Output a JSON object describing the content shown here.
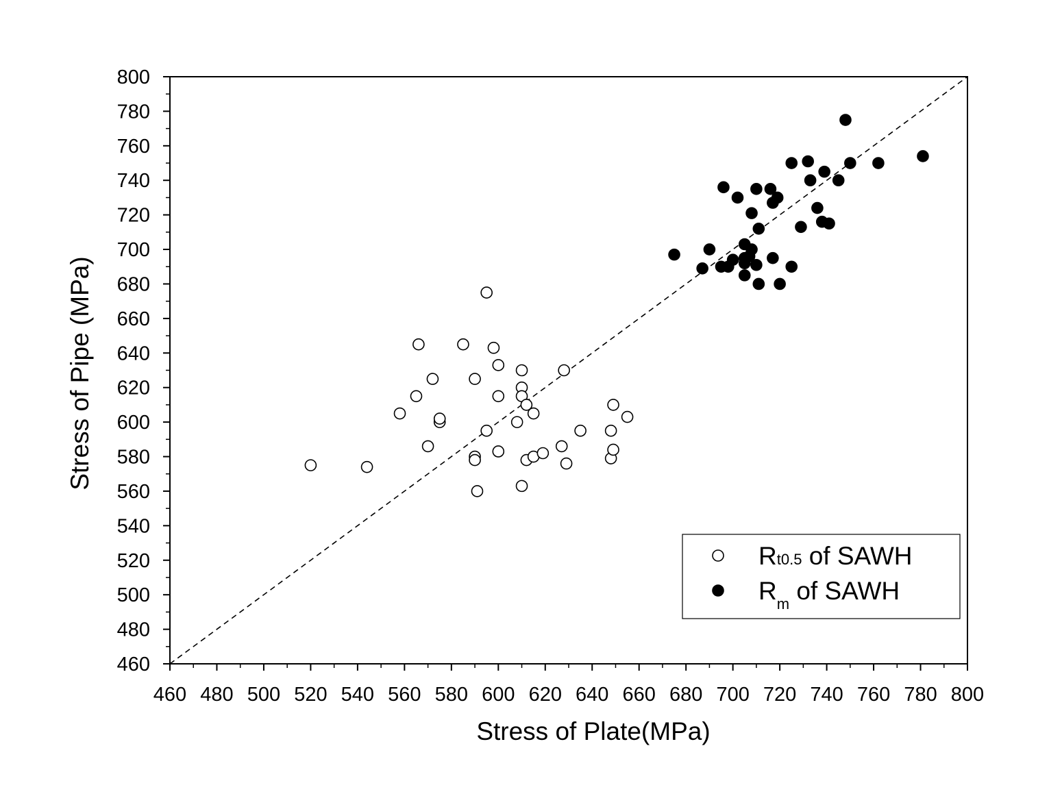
{
  "chart_data": {
    "type": "scatter",
    "title": "",
    "xlabel": "Stress of Plate(MPa)",
    "ylabel": "Stress of Pipe (MPa)",
    "xlim": [
      460,
      800
    ],
    "ylim": [
      460,
      800
    ],
    "xticks": [
      "460",
      "480",
      "500",
      "520",
      "540",
      "560",
      "580",
      "600",
      "620",
      "640",
      "660",
      "680",
      "700",
      "720",
      "740",
      "760",
      "780",
      "800"
    ],
    "yticks": [
      "460",
      "480",
      "500",
      "520",
      "540",
      "560",
      "580",
      "600",
      "620",
      "640",
      "660",
      "680",
      "700",
      "720",
      "740",
      "760",
      "780",
      "800"
    ],
    "grid": false,
    "legend_position": "bottom-right",
    "reference_line": {
      "style": "dashed",
      "from": [
        460,
        460
      ],
      "to": [
        800,
        800
      ]
    },
    "series": [
      {
        "name": "Rt0.5 of SAWH",
        "name_main": "R",
        "name_sub": "t0.5",
        "name_rest": " of SAWH",
        "marker": "open-circle",
        "color": "#000000",
        "points": [
          [
            520,
            575
          ],
          [
            544,
            574
          ],
          [
            558,
            605
          ],
          [
            565,
            615
          ],
          [
            566,
            645
          ],
          [
            570,
            586
          ],
          [
            572,
            625
          ],
          [
            575,
            600
          ],
          [
            575,
            602
          ],
          [
            585,
            645
          ],
          [
            590,
            625
          ],
          [
            590,
            580
          ],
          [
            590,
            578
          ],
          [
            591,
            560
          ],
          [
            595,
            675
          ],
          [
            595,
            595
          ],
          [
            598,
            643
          ],
          [
            600,
            633
          ],
          [
            600,
            615
          ],
          [
            600,
            583
          ],
          [
            608,
            600
          ],
          [
            610,
            630
          ],
          [
            610,
            620
          ],
          [
            610,
            615
          ],
          [
            610,
            563
          ],
          [
            612,
            610
          ],
          [
            612,
            578
          ],
          [
            615,
            605
          ],
          [
            615,
            580
          ],
          [
            619,
            582
          ],
          [
            627,
            586
          ],
          [
            628,
            630
          ],
          [
            629,
            576
          ],
          [
            635,
            595
          ],
          [
            648,
            595
          ],
          [
            648,
            579
          ],
          [
            649,
            610
          ],
          [
            649,
            584
          ],
          [
            655,
            603
          ]
        ]
      },
      {
        "name": "Rm of SAWH",
        "name_main": "R",
        "name_sub": "m",
        "name_rest": " of SAWH",
        "marker": "filled-circle",
        "color": "#000000",
        "points": [
          [
            675,
            697
          ],
          [
            687,
            689
          ],
          [
            690,
            700
          ],
          [
            695,
            690
          ],
          [
            696,
            736
          ],
          [
            698,
            690
          ],
          [
            700,
            694
          ],
          [
            702,
            730
          ],
          [
            705,
            703
          ],
          [
            705,
            695
          ],
          [
            705,
            692
          ],
          [
            705,
            685
          ],
          [
            707,
            696
          ],
          [
            708,
            700
          ],
          [
            708,
            721
          ],
          [
            710,
            735
          ],
          [
            710,
            691
          ],
          [
            711,
            712
          ],
          [
            711,
            680
          ],
          [
            716,
            735
          ],
          [
            717,
            727
          ],
          [
            717,
            695
          ],
          [
            719,
            730
          ],
          [
            720,
            680
          ],
          [
            725,
            750
          ],
          [
            725,
            690
          ],
          [
            729,
            713
          ],
          [
            732,
            751
          ],
          [
            733,
            740
          ],
          [
            736,
            724
          ],
          [
            738,
            716
          ],
          [
            739,
            745
          ],
          [
            741,
            715
          ],
          [
            745,
            740
          ],
          [
            748,
            775
          ],
          [
            750,
            750
          ],
          [
            762,
            750
          ],
          [
            781,
            754
          ]
        ]
      }
    ]
  }
}
